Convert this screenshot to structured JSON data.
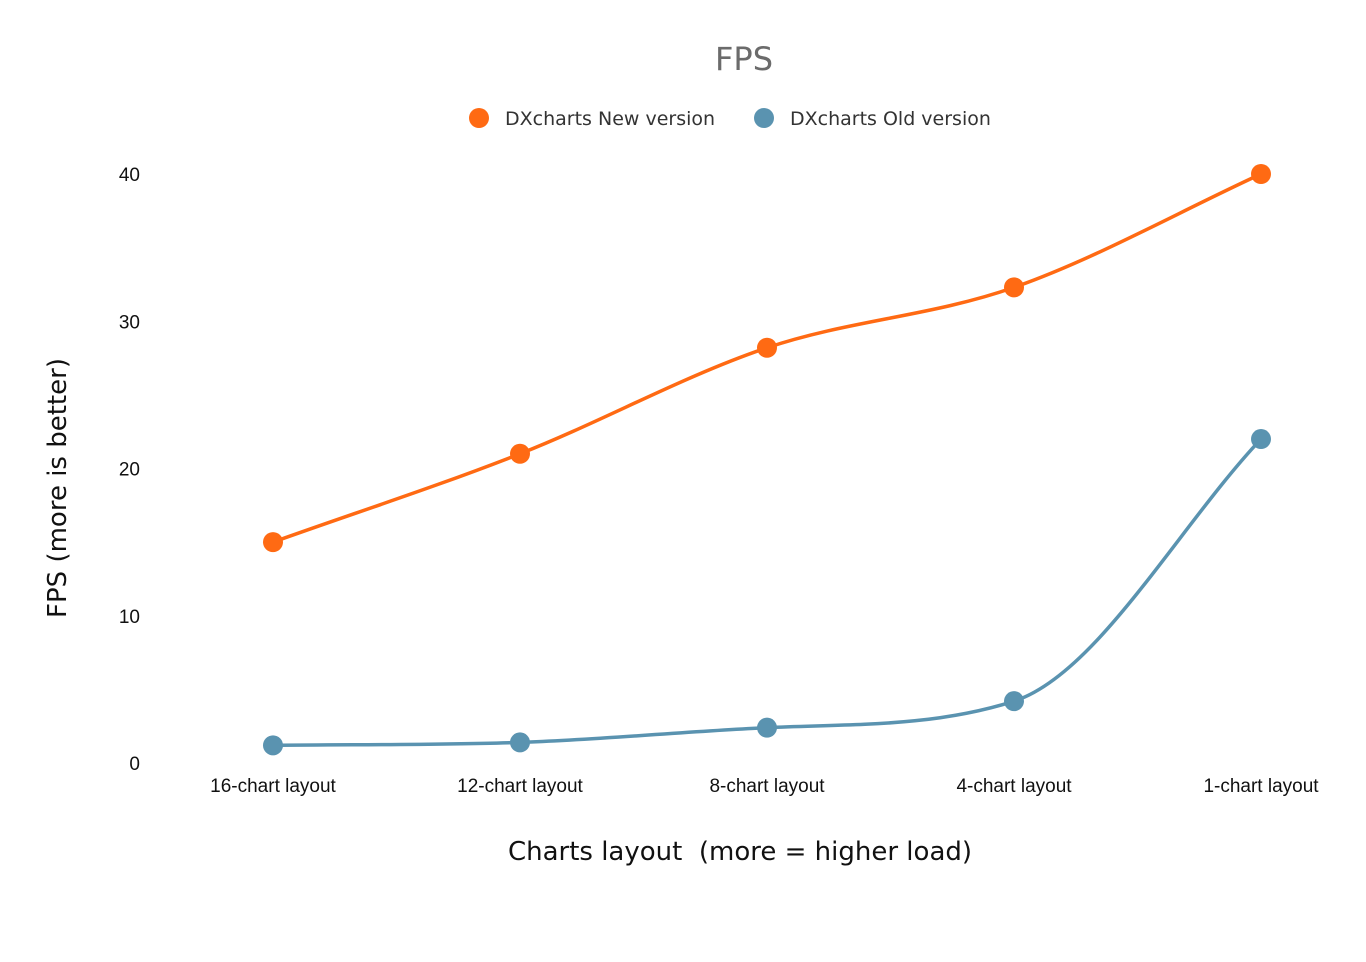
{
  "chart_data": {
    "type": "line",
    "title": "FPS",
    "xlabel": "Charts layout  (more = higher load)",
    "ylabel": "FPS (more is better)",
    "categories": [
      "16-chart layout",
      "12-chart layout",
      "8-chart layout",
      "4-chart layout",
      "1-chart layout"
    ],
    "y_ticks": [
      0,
      10,
      20,
      30,
      40
    ],
    "ylim": [
      0,
      40
    ],
    "grid": false,
    "legend_position": "top-center",
    "series": [
      {
        "name": "DXcharts New version",
        "color": "#ff6a13",
        "values": [
          15,
          21,
          28.2,
          32.3,
          40
        ]
      },
      {
        "name": "DXcharts Old version",
        "color": "#5a93b0",
        "values": [
          1.2,
          1.4,
          2.4,
          4.2,
          22
        ]
      }
    ]
  }
}
